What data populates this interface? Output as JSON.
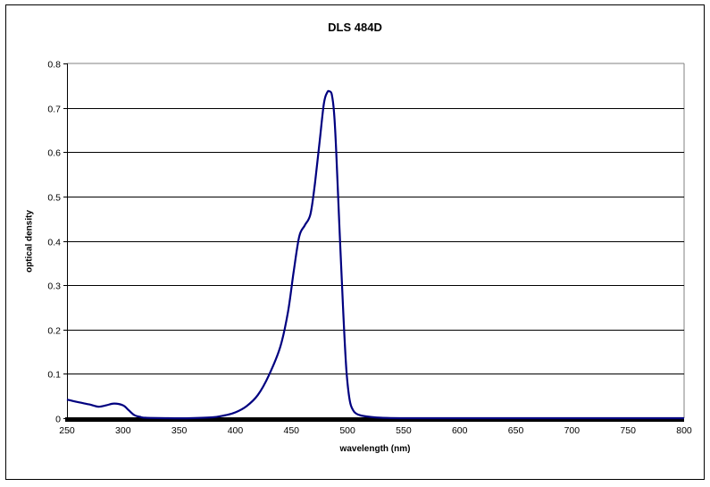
{
  "chart_data": {
    "type": "line",
    "title": "DLS 484D",
    "xlabel": "wavelength (nm)",
    "ylabel": "optical density",
    "xlim": [
      250,
      800
    ],
    "ylim": [
      0,
      0.8
    ],
    "x_ticks": [
      "250",
      "300",
      "350",
      "400",
      "450",
      "500",
      "550",
      "600",
      "650",
      "700",
      "750",
      "800"
    ],
    "y_ticks": [
      "0",
      "0.1",
      "0.2",
      "0.3",
      "0.4",
      "0.5",
      "0.6",
      "0.7",
      "0.8"
    ],
    "grid": "horizontal major gridlines",
    "legend": "none",
    "series": [
      {
        "name": "DLS 484D",
        "color": "#000080",
        "x": [
          250,
          260,
          270,
          278,
          285,
          292,
          300,
          305,
          310,
          315,
          320,
          340,
          360,
          380,
          390,
          400,
          410,
          420,
          430,
          440,
          447,
          452,
          457,
          462,
          467,
          471,
          475,
          479,
          482,
          484,
          486,
          488,
          490,
          493,
          496,
          499,
          502,
          505,
          508,
          512,
          520,
          530,
          550,
          600,
          700,
          800
        ],
        "values": [
          0.042,
          0.036,
          0.031,
          0.026,
          0.029,
          0.033,
          0.029,
          0.018,
          0.007,
          0.003,
          0.001,
          0.0,
          0.0,
          0.002,
          0.006,
          0.013,
          0.027,
          0.052,
          0.097,
          0.16,
          0.24,
          0.33,
          0.41,
          0.435,
          0.46,
          0.53,
          0.62,
          0.71,
          0.735,
          0.737,
          0.73,
          0.69,
          0.6,
          0.42,
          0.25,
          0.11,
          0.04,
          0.018,
          0.01,
          0.006,
          0.003,
          0.001,
          0.0,
          0.0,
          0.0,
          0.0
        ]
      }
    ]
  }
}
